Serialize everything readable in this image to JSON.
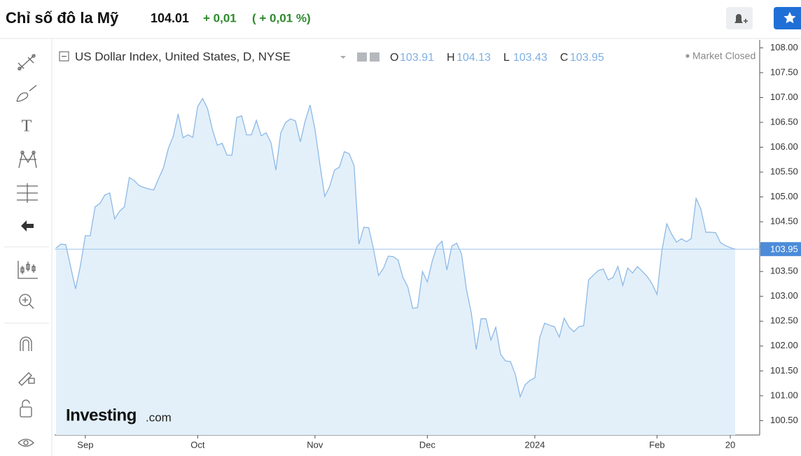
{
  "header": {
    "title": "Chỉ số đô la Mỹ",
    "price": "104.01",
    "change": "+ 0,01",
    "change_percent": "( + 0,01 %)"
  },
  "chart_data": {
    "type": "line",
    "title": "US Dollar Index, United States, D, NYSE",
    "ohlc": [
      {
        "label": "O",
        "value": 103.91
      },
      {
        "label": "H",
        "value": 104.13
      },
      {
        "label": "L",
        "value": 103.43
      },
      {
        "label": "C",
        "value": 103.95
      }
    ],
    "status": "Market Closed",
    "watermark": {
      "brand": "Investing",
      "suffix": ".com"
    },
    "categories": [
      null,
      null,
      null,
      null,
      null,
      null,
      "Sep",
      null,
      null,
      null,
      null,
      null,
      null,
      null,
      null,
      null,
      null,
      null,
      null,
      null,
      null,
      null,
      null,
      null,
      null,
      null,
      null,
      null,
      null,
      "Oct",
      null,
      null,
      null,
      null,
      null,
      null,
      null,
      null,
      null,
      null,
      null,
      null,
      null,
      null,
      null,
      null,
      null,
      null,
      null,
      null,
      null,
      null,
      null,
      "Nov",
      null,
      null,
      null,
      null,
      null,
      null,
      null,
      null,
      null,
      null,
      null,
      null,
      null,
      null,
      null,
      null,
      null,
      null,
      null,
      null,
      null,
      null,
      "Dec",
      null,
      null,
      null,
      null,
      null,
      null,
      null,
      null,
      null,
      null,
      null,
      null,
      null,
      null,
      null,
      null,
      null,
      null,
      null,
      null,
      null,
      "2024",
      null,
      null,
      null,
      null,
      null,
      null,
      null,
      null,
      null,
      null,
      null,
      null,
      null,
      null,
      null,
      null,
      null,
      null,
      null,
      null,
      null,
      null,
      null,
      null,
      "Feb",
      null,
      null,
      null,
      null,
      null,
      null,
      null,
      null,
      null,
      null,
      null,
      null,
      null,
      null,
      "20",
      null
    ],
    "values": [
      103.97,
      104.05,
      104.04,
      103.59,
      103.15,
      103.62,
      104.22,
      104.22,
      104.8,
      104.87,
      105.04,
      105.08,
      104.56,
      104.71,
      104.8,
      105.39,
      105.33,
      105.23,
      105.19,
      105.16,
      105.14,
      105.37,
      105.59,
      105.98,
      106.22,
      106.67,
      106.19,
      106.25,
      106.2,
      106.82,
      106.98,
      106.78,
      106.36,
      106.04,
      106.08,
      105.84,
      105.84,
      106.6,
      106.63,
      106.25,
      106.25,
      106.54,
      106.23,
      106.29,
      106.09,
      105.54,
      106.29,
      106.5,
      106.57,
      106.53,
      106.11,
      106.53,
      106.85,
      106.36,
      105.66,
      105.01,
      105.21,
      105.54,
      105.6,
      105.91,
      105.87,
      105.63,
      104.05,
      104.39,
      104.38,
      103.94,
      103.42,
      103.56,
      103.81,
      103.8,
      103.73,
      103.38,
      103.19,
      102.76,
      102.77,
      103.5,
      103.29,
      103.71,
      104.01,
      104.11,
      103.53,
      104.01,
      104.07,
      103.85,
      103.14,
      102.66,
      101.93,
      102.55,
      102.55,
      102.12,
      102.38,
      101.83,
      101.7,
      101.69,
      101.43,
      100.98,
      101.22,
      101.31,
      101.36,
      102.17,
      102.46,
      102.42,
      102.39,
      102.18,
      102.56,
      102.38,
      102.29,
      102.39,
      102.41,
      103.33,
      103.43,
      103.52,
      103.55,
      103.33,
      103.38,
      103.6,
      103.22,
      103.57,
      103.47,
      103.6,
      103.5,
      103.4,
      103.25,
      103.04,
      103.92,
      104.46,
      104.25,
      104.09,
      104.16,
      104.1,
      104.16,
      104.97,
      104.75,
      104.29,
      104.29,
      104.28,
      104.08,
      104.02,
      103.98,
      103.95
    ],
    "color": "#8db9e6",
    "fill": "#e3f0fa",
    "ylim": [
      100.21,
      108.16
    ],
    "yticks": [
      {
        "value": 100.5,
        "label": "100.50"
      },
      {
        "value": 101,
        "label": "101.00"
      },
      {
        "value": 101.5,
        "label": "101.50"
      },
      {
        "value": 102,
        "label": "102.00"
      },
      {
        "value": 102.5,
        "label": "102.50"
      },
      {
        "value": 103,
        "label": "103.00"
      },
      {
        "value": 103.5,
        "label": "103.50"
      },
      {
        "value": 104,
        "label": "104.00"
      },
      {
        "value": 104.5,
        "label": "104.50"
      },
      {
        "value": 105,
        "label": "105.00"
      },
      {
        "value": 105.5,
        "label": "105.50"
      },
      {
        "value": 106,
        "label": "106.00"
      },
      {
        "value": 106.5,
        "label": "106.50"
      },
      {
        "value": 107,
        "label": "107.00"
      },
      {
        "value": 107.5,
        "label": "107.50"
      },
      {
        "value": 108,
        "label": "108.00"
      }
    ],
    "last_price": {
      "value": 103.95,
      "label": "103.95"
    }
  }
}
